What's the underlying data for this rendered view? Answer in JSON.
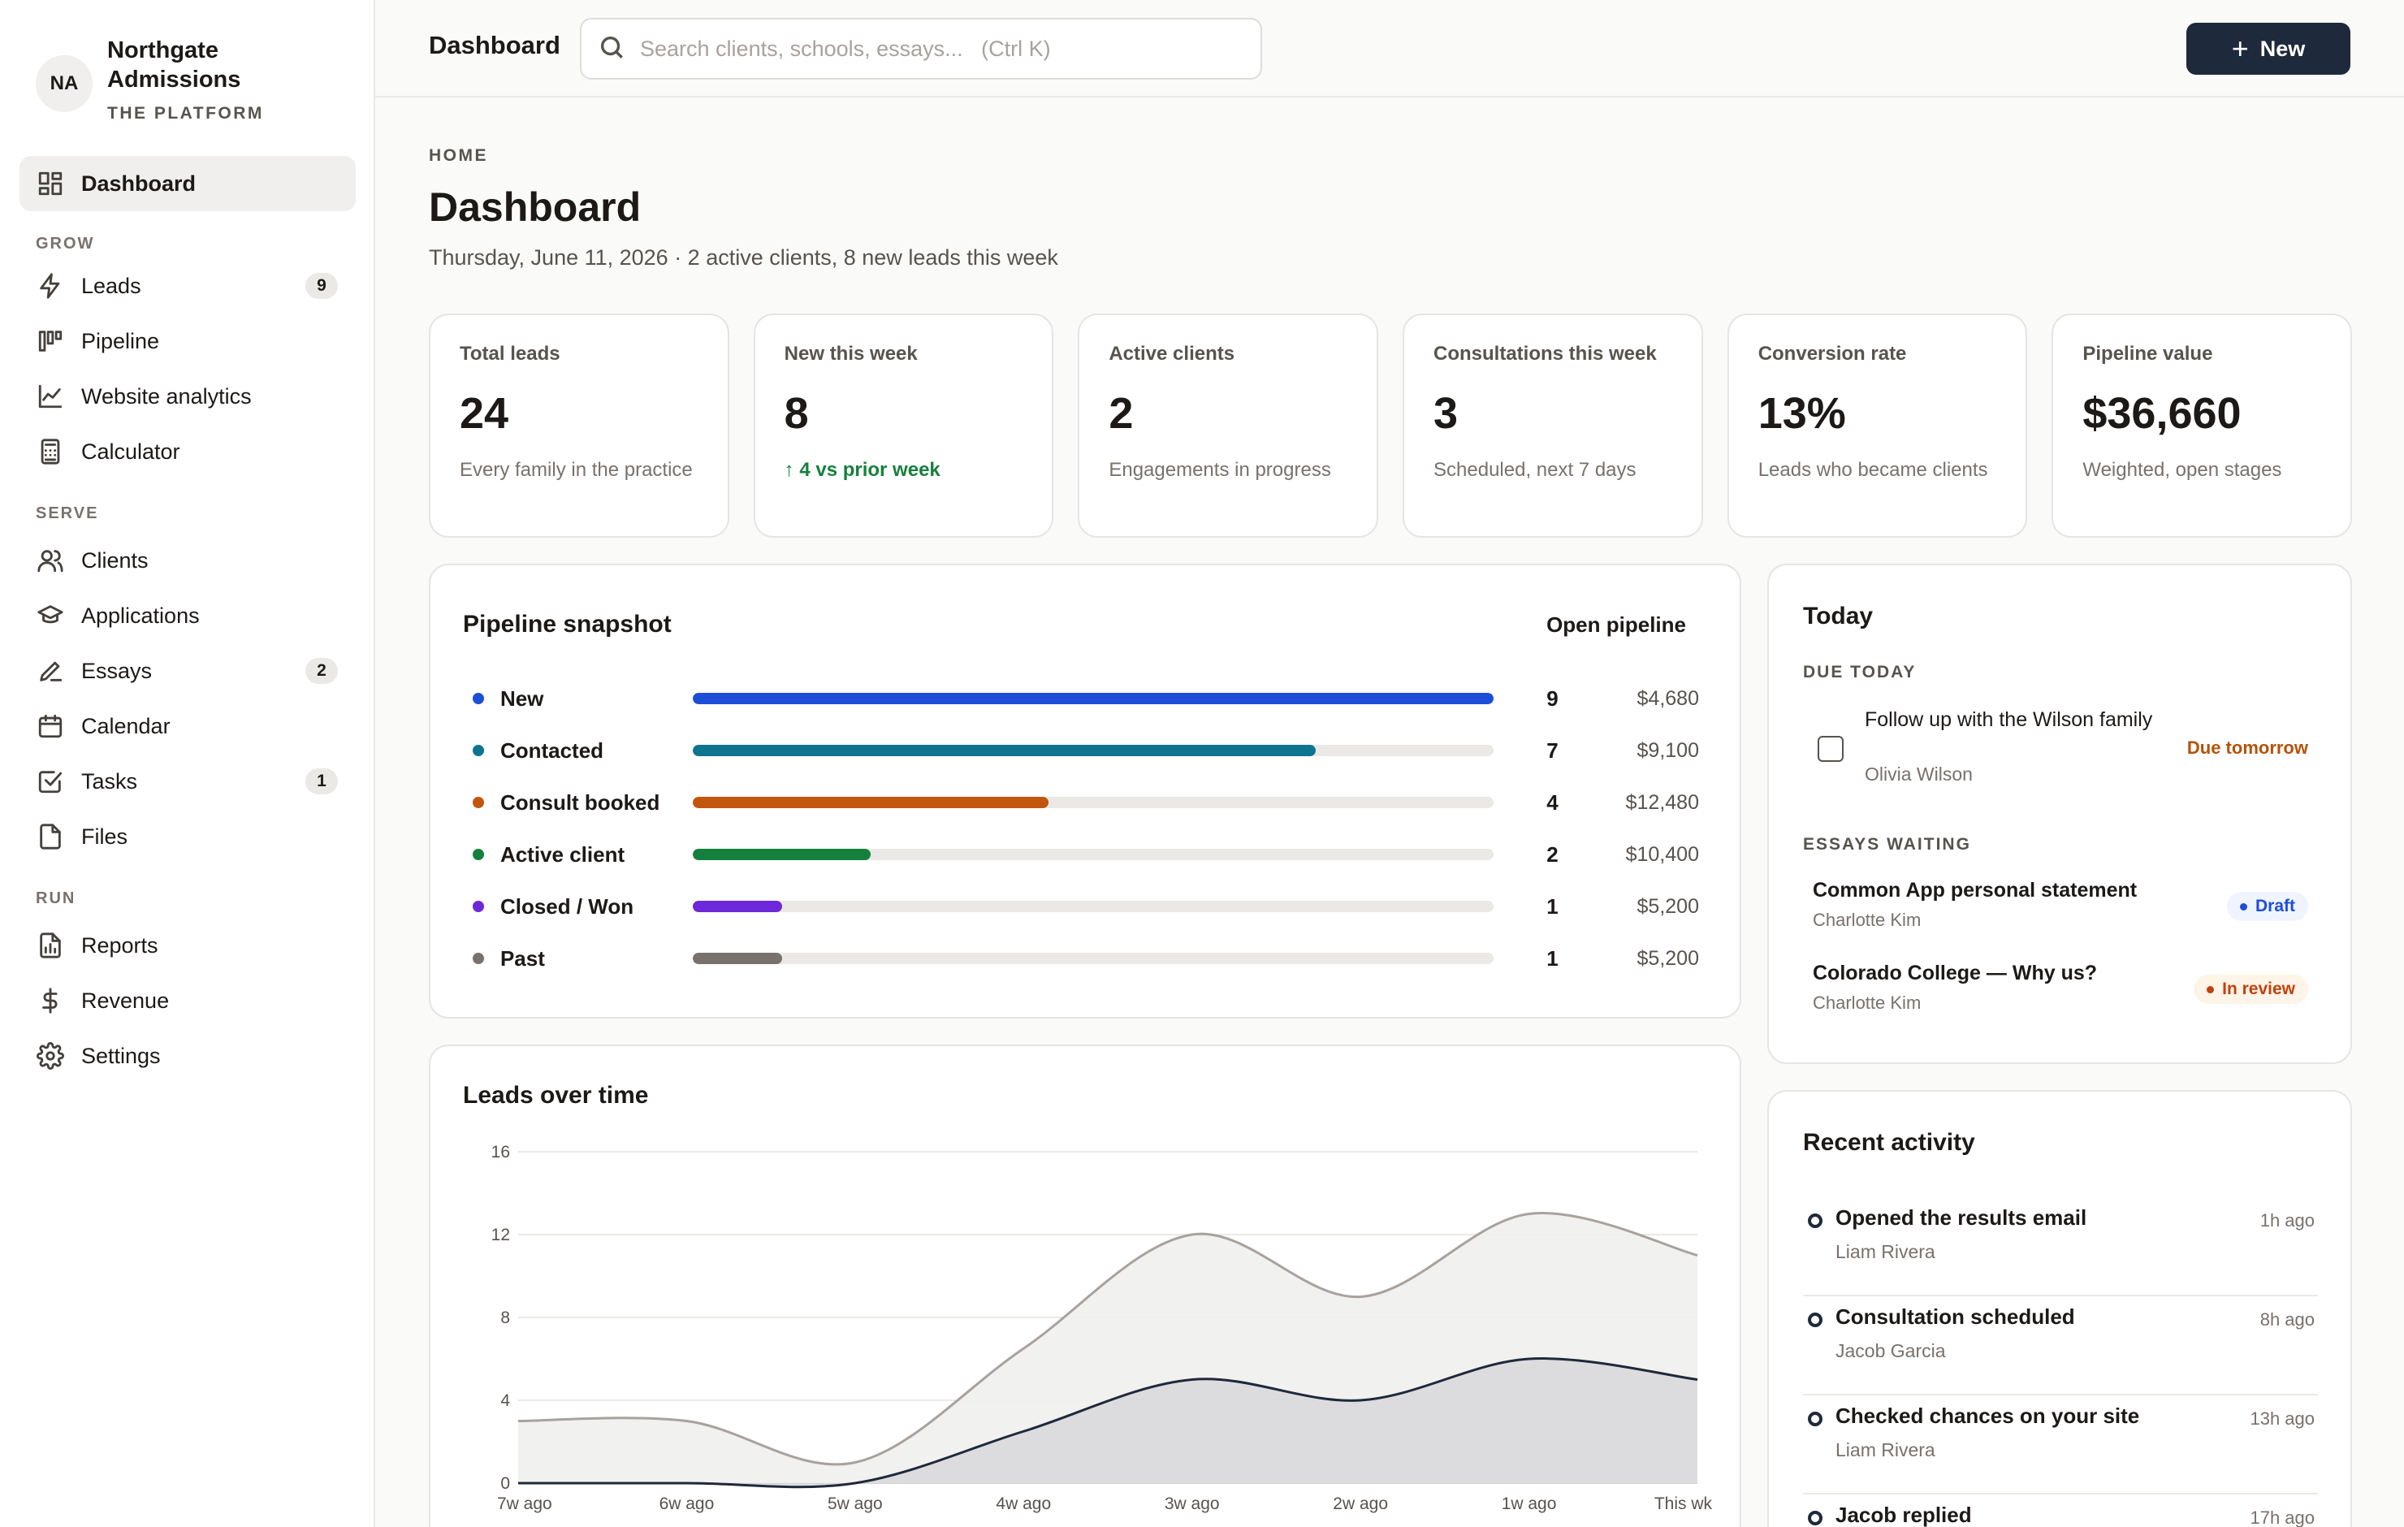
{
  "brand": {
    "initials": "NA",
    "name": "Northgate Admissions",
    "subtitle": "THE PLATFORM"
  },
  "sidebar": {
    "dashboard": {
      "label": "Dashboard",
      "icon": "dashboard-icon"
    },
    "sections": {
      "grow": "GROW",
      "serve": "SERVE",
      "run": "RUN"
    },
    "grow_items": [
      {
        "label": "Leads",
        "icon": "bolt-icon",
        "badge": "9"
      },
      {
        "label": "Pipeline",
        "icon": "kanban-icon"
      },
      {
        "label": "Website analytics",
        "icon": "line-chart-icon"
      },
      {
        "label": "Calculator",
        "icon": "calculator-icon"
      }
    ],
    "serve_items": [
      {
        "label": "Clients",
        "icon": "users-icon"
      },
      {
        "label": "Applications",
        "icon": "graduation-cap-icon"
      },
      {
        "label": "Essays",
        "icon": "pen-icon",
        "badge": "2"
      },
      {
        "label": "Calendar",
        "icon": "calendar-icon"
      },
      {
        "label": "Tasks",
        "icon": "checkbox-icon",
        "badge": "1"
      },
      {
        "label": "Files",
        "icon": "file-icon"
      }
    ],
    "run_items": [
      {
        "label": "Reports",
        "icon": "report-icon"
      },
      {
        "label": "Revenue",
        "icon": "dollar-icon"
      },
      {
        "label": "Settings",
        "icon": "gear-icon"
      }
    ]
  },
  "topbar": {
    "title": "Dashboard",
    "search_placeholder": "Search clients, schools, essays...   (Ctrl K)",
    "new_label": "New"
  },
  "header": {
    "breadcrumb": "HOME",
    "title": "Dashboard",
    "subtitle": "Thursday, June 11, 2026 · 2 active clients, 8 new leads this week"
  },
  "stats": [
    {
      "label": "Total leads",
      "value": "24",
      "note": "Every family in the practice"
    },
    {
      "label": "New this week",
      "value": "8",
      "note": "↑ 4 vs prior week",
      "positive": true
    },
    {
      "label": "Active clients",
      "value": "2",
      "note": "Engagements in progress"
    },
    {
      "label": "Consultations this week",
      "value": "3",
      "note": "Scheduled, next 7 days"
    },
    {
      "label": "Conversion rate",
      "value": "13%",
      "note": "Leads who became clients"
    },
    {
      "label": "Pipeline value",
      "value": "$36,660",
      "note": "Weighted, open stages"
    }
  ],
  "pipeline": {
    "title": "Pipeline snapshot",
    "link": "Open pipeline",
    "max": 9,
    "stages": [
      {
        "name": "New",
        "count": 9,
        "amount": "$4,680",
        "color": "#1d4ed8"
      },
      {
        "name": "Contacted",
        "count": 7,
        "amount": "$9,100",
        "color": "#0e7490"
      },
      {
        "name": "Consult booked",
        "count": 4,
        "amount": "$12,480",
        "color": "#c2560c"
      },
      {
        "name": "Active client",
        "count": 2,
        "amount": "$10,400",
        "color": "#15803d"
      },
      {
        "name": "Closed / Won",
        "count": 1,
        "amount": "$5,200",
        "color": "#6d28d9"
      },
      {
        "name": "Past",
        "count": 1,
        "amount": "$5,200",
        "color": "#78716c"
      }
    ]
  },
  "chart_data": {
    "type": "area",
    "title": "Leads over time",
    "x": [
      "7w ago",
      "6w ago",
      "5w ago",
      "4w ago",
      "3w ago",
      "2w ago",
      "1w ago",
      "This wk"
    ],
    "ylim": [
      0,
      16
    ],
    "yticks": [
      0,
      4,
      8,
      12,
      16
    ],
    "grid": true,
    "series": [
      {
        "values": [
          3,
          3,
          1,
          6.5,
          12,
          9,
          13,
          11
        ],
        "color": "#a8a29e",
        "fill": "#f0efed"
      },
      {
        "values": [
          0,
          0,
          0,
          2.5,
          5,
          4,
          6,
          5
        ],
        "color": "#1e293b",
        "fill": "#d4d4d8"
      }
    ]
  },
  "today": {
    "title": "Today",
    "due_heading": "DUE TODAY",
    "task": {
      "title": "Follow up with the Wilson family",
      "person": "Olivia Wilson",
      "due": "Due tomorrow"
    },
    "essays_heading": "ESSAYS WAITING",
    "essays": [
      {
        "title": "Common App personal statement",
        "person": "Charlotte Kim",
        "status": "Draft"
      },
      {
        "title": "Colorado College — Why us?",
        "person": "Charlotte Kim",
        "status": "In review"
      }
    ]
  },
  "activity": {
    "title": "Recent activity",
    "items": [
      {
        "title": "Opened the results email",
        "person": "Liam Rivera",
        "time": "1h ago"
      },
      {
        "title": "Consultation scheduled",
        "person": "Jacob Garcia",
        "time": "8h ago"
      },
      {
        "title": "Checked chances on your site",
        "person": "Liam Rivera",
        "time": "13h ago"
      },
      {
        "title": "Jacob replied",
        "person": "",
        "time": "17h ago"
      }
    ]
  }
}
